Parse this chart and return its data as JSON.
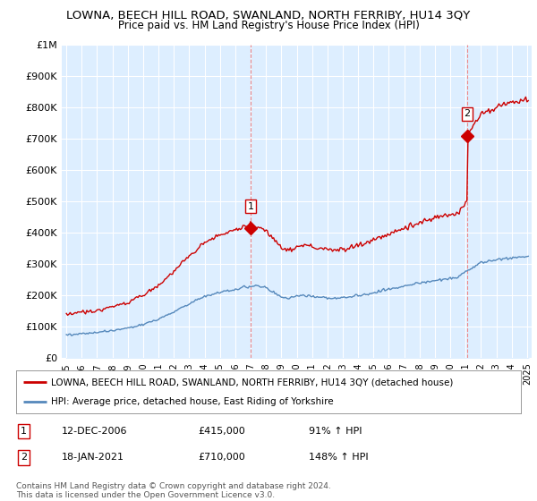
{
  "title": "LOWNA, BEECH HILL ROAD, SWANLAND, NORTH FERRIBY, HU14 3QY",
  "subtitle": "Price paid vs. HM Land Registry's House Price Index (HPI)",
  "ylim": [
    0,
    1000000
  ],
  "yticks": [
    0,
    100000,
    200000,
    300000,
    400000,
    500000,
    600000,
    700000,
    800000,
    900000,
    1000000
  ],
  "ytick_labels": [
    "£0",
    "£100K",
    "£200K",
    "£300K",
    "£400K",
    "£500K",
    "£600K",
    "£700K",
    "£800K",
    "£900K",
    "£1M"
  ],
  "property_color": "#cc0000",
  "hpi_color": "#5588bb",
  "hpi_fill_color": "#ddeeff",
  "marker_color": "#cc0000",
  "transaction1_x": 2007.0,
  "transaction1_y": 415000,
  "transaction1_label": "1",
  "transaction2_x": 2021.1,
  "transaction2_y": 710000,
  "transaction2_label": "2",
  "vline_color": "#ee8888",
  "legend_property": "LOWNA, BEECH HILL ROAD, SWANLAND, NORTH FERRIBY, HU14 3QY (detached house)",
  "legend_hpi": "HPI: Average price, detached house, East Riding of Yorkshire",
  "note1_label": "1",
  "note1_date": "12-DEC-2006",
  "note1_price": "£415,000",
  "note1_hpi": "91% ↑ HPI",
  "note2_label": "2",
  "note2_date": "18-JAN-2021",
  "note2_price": "£710,000",
  "note2_hpi": "148% ↑ HPI",
  "copyright": "Contains HM Land Registry data © Crown copyright and database right 2024.\nThis data is licensed under the Open Government Licence v3.0.",
  "xlim_left": 1994.7,
  "xlim_right": 2025.3,
  "background_color": "#ffffff",
  "plot_bg_color": "#ddeeff",
  "grid_color": "#ffffff"
}
